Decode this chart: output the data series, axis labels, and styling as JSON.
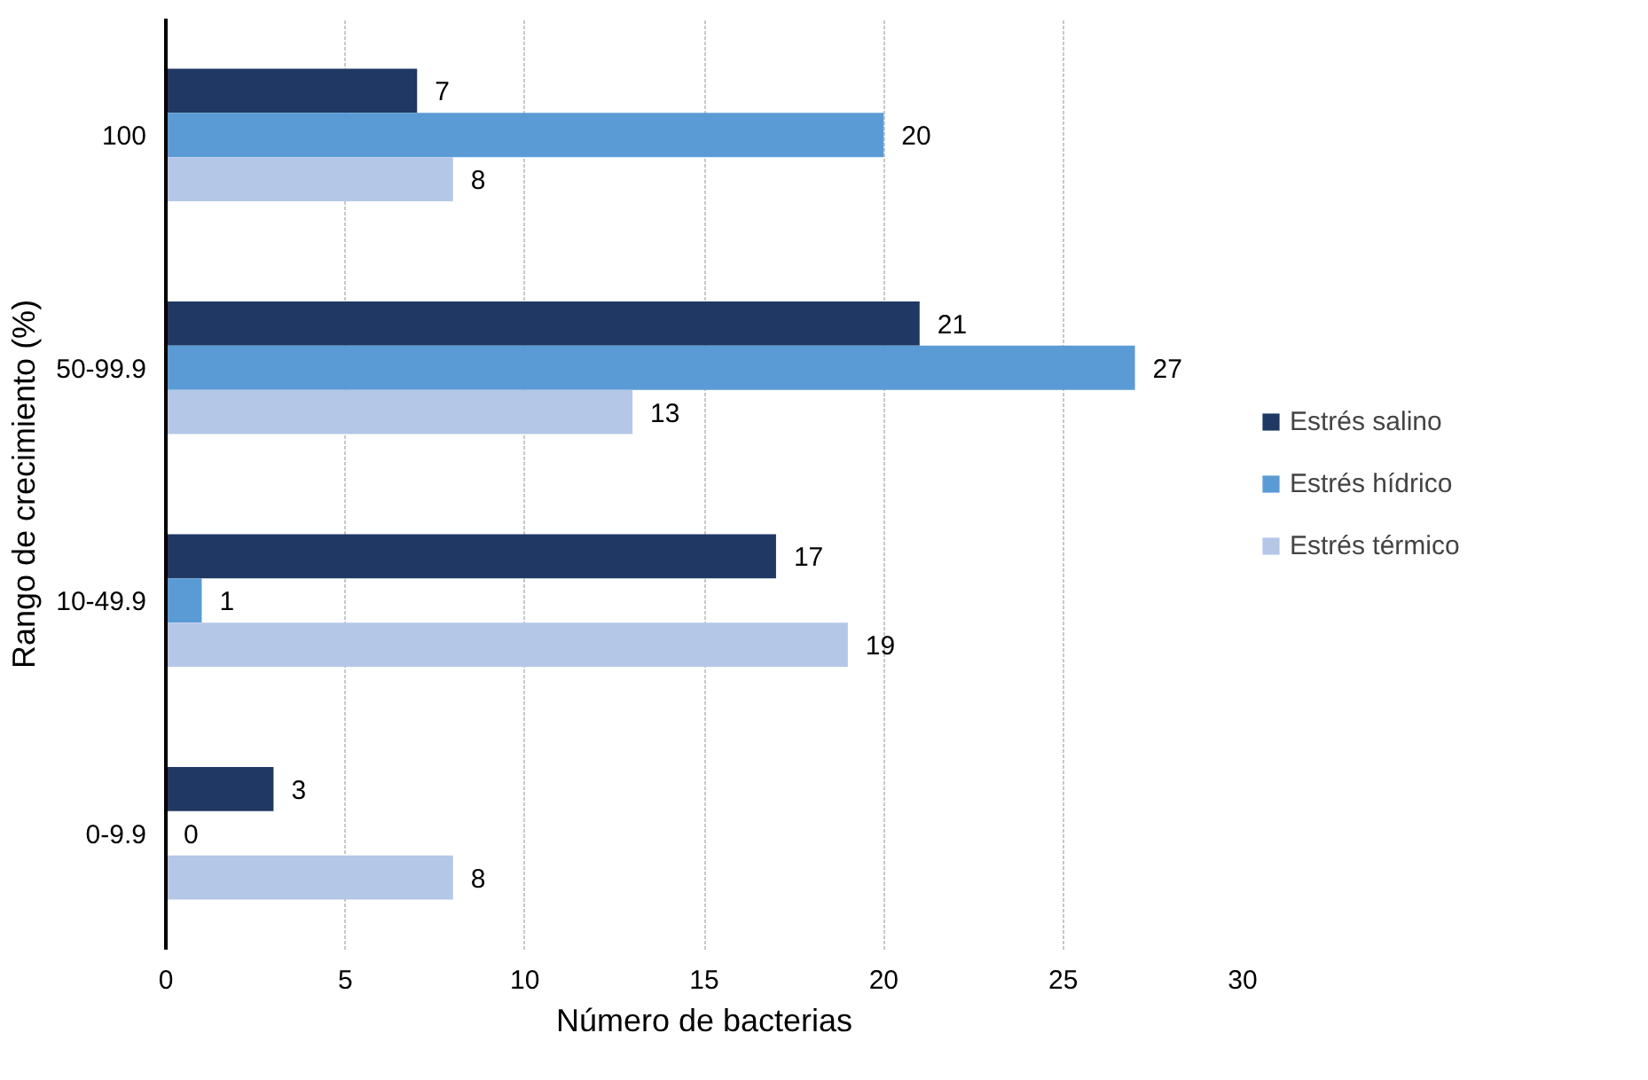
{
  "chart_data": {
    "type": "bar",
    "orientation": "horizontal",
    "xlabel": "Número de bacterias",
    "ylabel": "Rango de crecimiento (%)",
    "categories": [
      "100",
      "50-99.9",
      "10-49.9",
      "0-9.9"
    ],
    "series": [
      {
        "name": "Estrés salino",
        "color": "#203864",
        "values": [
          7,
          21,
          17,
          3
        ]
      },
      {
        "name": "Estrés hídrico",
        "color": "#5b9bd5",
        "values": [
          20,
          27,
          1,
          0
        ]
      },
      {
        "name": "Estrés térmico",
        "color": "#b4c7e7",
        "values": [
          8,
          13,
          19,
          8
        ]
      }
    ],
    "xlim": [
      0,
      30
    ],
    "xticks": [
      0,
      5,
      10,
      15,
      20,
      25,
      30
    ],
    "grid": "x",
    "legend": "right",
    "data_labels": true
  }
}
